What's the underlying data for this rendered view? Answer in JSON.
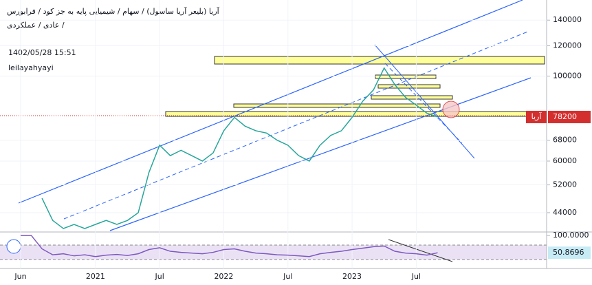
{
  "chart_data": [
    {
      "type": "line",
      "title": "آریا (بلیعر آریا ساسول) / سهام / شیمیایی پایه به جز کود / فرابورس",
      "subtitle": "عادی / عملکردی /",
      "annotations": [
        "1402/05/28 15:51",
        "leilayahyayi"
      ],
      "categories": [
        "Jun",
        null,
        null,
        null,
        null,
        null,
        null,
        "2021",
        null,
        null,
        null,
        null,
        null,
        "Jul",
        null,
        null,
        null,
        null,
        null,
        "2022",
        null,
        null,
        null,
        null,
        null,
        "Jul",
        null,
        null,
        null,
        null,
        null,
        "2023",
        null,
        null,
        null,
        null,
        null,
        "Jul",
        null,
        null
      ],
      "series": [
        {
          "name": "آریا",
          "color": "#26a69a",
          "values": [
            null,
            null,
            48000,
            42000,
            40000,
            41000,
            40000,
            41000,
            42000,
            41000,
            42000,
            44000,
            56000,
            66000,
            62000,
            64000,
            62000,
            60000,
            63000,
            72000,
            78000,
            74000,
            72000,
            71000,
            68000,
            66000,
            62000,
            60000,
            66000,
            70000,
            72000,
            78000,
            86000,
            92000,
            105000,
            95000,
            88000,
            84000,
            80000,
            78200
          ]
        }
      ],
      "ylim": [
        39500,
        158000
      ],
      "log": true,
      "yticks": [
        44000,
        52000,
        60000,
        68000,
        100000,
        120000,
        140000
      ],
      "grid": true
    },
    {
      "type": "line",
      "series": [
        {
          "color": "#7e57c2",
          "values": [
            100,
            100,
            62,
            45,
            48,
            42,
            45,
            40,
            44,
            46,
            43,
            48,
            60,
            65,
            55,
            52,
            50,
            48,
            52,
            60,
            62,
            55,
            50,
            48,
            45,
            44,
            42,
            40,
            48,
            52,
            55,
            60,
            64,
            68,
            70,
            55,
            50,
            48,
            44,
            50.8696
          ]
        }
      ],
      "ylim": [
        10,
        108
      ],
      "yticks": [
        {
          "value": 100,
          "label": "100.0000"
        }
      ]
    }
  ]
}
